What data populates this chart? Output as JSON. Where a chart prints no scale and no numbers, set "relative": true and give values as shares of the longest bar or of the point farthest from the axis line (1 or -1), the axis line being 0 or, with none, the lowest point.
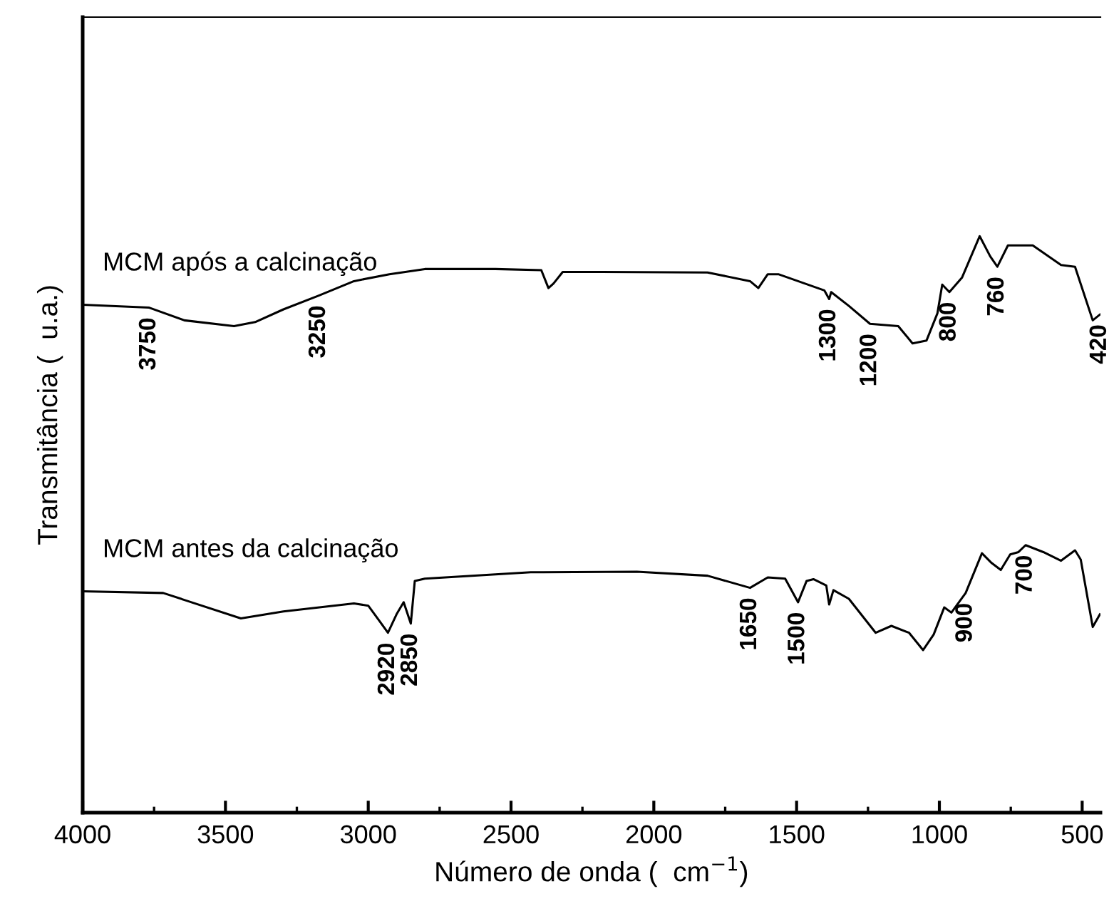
{
  "chart_data": {
    "type": "line",
    "relative": true,
    "xlabel": "Número de onda (  cm$^{−1}$)",
    "ylabel": "Transmitância (  u.a.)",
    "xlim": [
      4000,
      436
    ],
    "xticks": [
      4000,
      {
        "value": 3750,
        "label": null
      },
      3500,
      {
        "value": 3250,
        "label": null
      },
      3000,
      {
        "value": 2750,
        "label": null
      },
      2500,
      {
        "value": 2250,
        "label": null
      },
      2000,
      {
        "value": 1750,
        "label": null
      },
      1500,
      {
        "value": 1250,
        "label": null
      },
      1000,
      {
        "value": 750,
        "label": null
      },
      500
    ],
    "grid": false,
    "legend": false,
    "marker": "none",
    "line_style": "solid",
    "series": [
      {
        "name": "MCM após a calcinação",
        "color": "#000000",
        "x": [
          4000,
          3767,
          3644,
          3470,
          3396,
          3297,
          3173,
          3050,
          2926,
          2802,
          2554,
          2394,
          2369,
          2351,
          2319,
          2183,
          1812,
          1663,
          1634,
          1601,
          1564,
          1403,
          1386,
          1379,
          1317,
          1243,
          1144,
          1094,
          1045,
          1007,
          990,
          965,
          921,
          859,
          822,
          797,
          760,
          673,
          574,
          525,
          463,
          438
        ],
        "values": [
          0.881,
          0.876,
          0.854,
          0.844,
          0.851,
          0.873,
          0.897,
          0.922,
          0.934,
          0.943,
          0.943,
          0.941,
          0.91,
          0.918,
          0.938,
          0.938,
          0.937,
          0.922,
          0.91,
          0.934,
          0.934,
          0.906,
          0.891,
          0.903,
          0.879,
          0.848,
          0.844,
          0.814,
          0.819,
          0.866,
          0.916,
          0.903,
          0.928,
          1.0,
          0.965,
          0.947,
          0.984,
          0.984,
          0.95,
          0.947,
          0.854,
          0.864
        ]
      },
      {
        "name": "MCM antes da calcinação",
        "color": "#000000",
        "x": [
          4000,
          3718,
          3644,
          3446,
          3297,
          3050,
          3000,
          2963,
          2931,
          2901,
          2876,
          2851,
          2837,
          2802,
          2431,
          2059,
          1812,
          1663,
          1601,
          1540,
          1495,
          1465,
          1441,
          1396,
          1386,
          1371,
          1317,
          1223,
          1168,
          1106,
          1057,
          1020,
          983,
          958,
          908,
          851,
          817,
          785,
          752,
          723,
          698,
          636,
          574,
          525,
          505,
          463,
          438
        ],
        "values": [
          0.384,
          0.381,
          0.369,
          0.337,
          0.349,
          0.363,
          0.359,
          0.334,
          0.312,
          0.344,
          0.365,
          0.328,
          0.402,
          0.406,
          0.417,
          0.418,
          0.411,
          0.39,
          0.408,
          0.406,
          0.365,
          0.402,
          0.405,
          0.394,
          0.361,
          0.386,
          0.371,
          0.312,
          0.324,
          0.312,
          0.282,
          0.309,
          0.356,
          0.347,
          0.381,
          0.45,
          0.433,
          0.421,
          0.448,
          0.452,
          0.464,
          0.452,
          0.437,
          0.455,
          0.439,
          0.322,
          0.344
        ]
      }
    ],
    "annotations": [
      {
        "text": "3750",
        "x": 3767,
        "y": 0.876
      },
      {
        "text": "3250",
        "x": 3173,
        "y": 0.897
      },
      {
        "text": "1300",
        "x": 1386,
        "y": 0.891
      },
      {
        "text": "1200",
        "x": 1243,
        "y": 0.848
      },
      {
        "text": "800",
        "x": 965,
        "y": 0.903
      },
      {
        "text": "760",
        "x": 797,
        "y": 0.947
      },
      {
        "text": "420",
        "x": 438,
        "y": 0.864
      },
      {
        "text": "2920",
        "x": 2931,
        "y": 0.312
      },
      {
        "text": "2850",
        "x": 2851,
        "y": 0.328
      },
      {
        "text": "1650",
        "x": 1663,
        "y": 0.39
      },
      {
        "text": "1500",
        "x": 1495,
        "y": 0.365
      },
      {
        "text": "900",
        "x": 908,
        "y": 0.381
      },
      {
        "text": "700",
        "x": 698,
        "y": 0.464
      }
    ]
  }
}
